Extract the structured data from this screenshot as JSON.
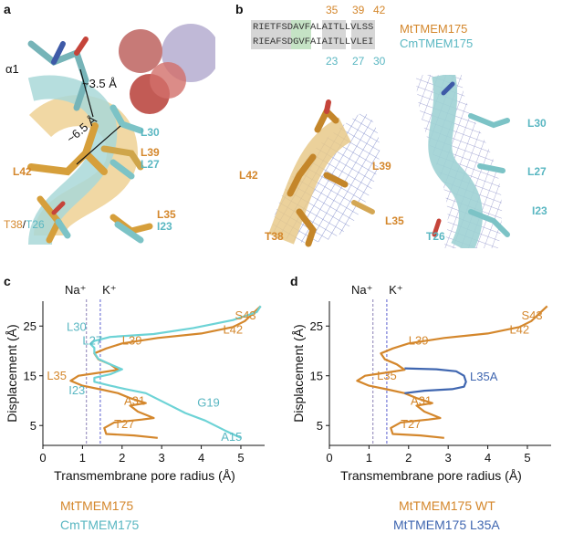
{
  "panels": {
    "a": {
      "label": "a",
      "helix": "α1",
      "dist1": "~3.5 Å",
      "dist2": "~6.5 Å",
      "residues_orange": [
        "L39",
        "L42",
        "L35"
      ],
      "residues_cyan": [
        "L30",
        "L27",
        "I23"
      ],
      "t38": "T38",
      "slash": "/",
      "t26": "T26"
    },
    "b": {
      "label": "b",
      "mt_numbers": [
        "35",
        "39",
        "42"
      ],
      "cm_numbers": [
        "23",
        "27",
        "30"
      ],
      "mt_name": "MtTMEM175",
      "cm_name": "CmTMEM175",
      "mt_seq": "RIETFSDAVFALAITLLVLSS",
      "cm_seq": "RIEAFSDGVFAIAITLLVLEI",
      "left_residues": [
        "L42",
        "L39",
        "L35",
        "T38"
      ],
      "right_residues": [
        "L30",
        "L27",
        "I23",
        "T26"
      ]
    },
    "c": {
      "label": "c",
      "na": "Na⁺",
      "k": "K⁺",
      "legend": [
        "MtTMEM175",
        "CmTMEM175"
      ],
      "labels_orange": [
        "S43",
        "L42",
        "L39",
        "L35",
        "A31",
        "T27"
      ],
      "labels_cyan": [
        "L30",
        "L27",
        "I23",
        "G19",
        "A15"
      ]
    },
    "d": {
      "label": "d",
      "na": "Na⁺",
      "k": "K⁺",
      "legend": [
        "MtTMEM175 WT",
        "MtTMEM175 L35A"
      ],
      "labels_orange": [
        "S43",
        "L42",
        "L39",
        "L35",
        "A31",
        "T27"
      ],
      "labels_blue": [
        "L35A"
      ]
    }
  },
  "colors": {
    "orange": "#d4872c",
    "cyan": "#6dd3d6",
    "blue": "#3f66b0",
    "na_line": "#8a7fb5",
    "k_line": "#5a5fd0"
  },
  "chart_data": [
    {
      "type": "line",
      "panel": "c",
      "xlabel": "Transmembrane pore radius (Å)",
      "ylabel": "Displacement (Å)",
      "xlim": [
        0,
        5.6
      ],
      "ylim": [
        1,
        30
      ],
      "xticks": [
        0,
        1,
        2,
        3,
        4,
        5
      ],
      "yticks": [
        5,
        15,
        25
      ],
      "reference_lines": [
        {
          "name": "Na⁺",
          "x": 1.1
        },
        {
          "name": "K⁺",
          "x": 1.45
        }
      ],
      "series": [
        {
          "name": "MtTMEM175",
          "points": [
            [
              2.9,
              2.5
            ],
            [
              2.3,
              3.0
            ],
            [
              1.6,
              3.3
            ],
            [
              1.55,
              4.5
            ],
            [
              1.8,
              5.6
            ],
            [
              2.5,
              6.2
            ],
            [
              2.8,
              6.5
            ],
            [
              2.4,
              7.8
            ],
            [
              2.2,
              9.0
            ],
            [
              2.6,
              9.5
            ],
            [
              2.2,
              10.5
            ],
            [
              1.9,
              11.5
            ],
            [
              1.5,
              12.2
            ],
            [
              1.0,
              13.0
            ],
            [
              0.7,
              14.0
            ],
            [
              0.9,
              15.0
            ],
            [
              1.4,
              15.6
            ],
            [
              1.9,
              16.2
            ],
            [
              1.7,
              17.3
            ],
            [
              1.4,
              18.3
            ],
            [
              1.3,
              19.5
            ],
            [
              1.6,
              20.5
            ],
            [
              2.0,
              21.5
            ],
            [
              2.9,
              22.6
            ],
            [
              4.0,
              23.5
            ],
            [
              4.8,
              24.8
            ],
            [
              5.1,
              26.0
            ],
            [
              5.3,
              27.5
            ],
            [
              5.5,
              29.0
            ]
          ]
        },
        {
          "name": "CmTMEM175",
          "points": [
            [
              5.0,
              2.5
            ],
            [
              4.6,
              4.0
            ],
            [
              4.1,
              6.0
            ],
            [
              3.6,
              7.5
            ],
            [
              3.1,
              9.5
            ],
            [
              2.6,
              11.5
            ],
            [
              2.1,
              12.3
            ],
            [
              1.7,
              13.0
            ],
            [
              1.3,
              13.8
            ],
            [
              1.3,
              14.6
            ],
            [
              1.7,
              15.3
            ],
            [
              2.0,
              16.3
            ],
            [
              1.7,
              17.3
            ],
            [
              1.4,
              18.4
            ],
            [
              1.3,
              19.6
            ],
            [
              1.3,
              20.6
            ],
            [
              1.2,
              21.4
            ],
            [
              1.3,
              22.0
            ],
            [
              1.7,
              22.8
            ],
            [
              2.8,
              23.4
            ],
            [
              3.8,
              24.6
            ],
            [
              4.8,
              26.2
            ],
            [
              5.4,
              27.8
            ],
            [
              5.5,
              29.0
            ]
          ]
        }
      ]
    },
    {
      "type": "line",
      "panel": "d",
      "xlabel": "Transmembrane pore radius (Å)",
      "ylabel": "Displacement (Å)",
      "xlim": [
        0,
        5.6
      ],
      "ylim": [
        1,
        30
      ],
      "xticks": [
        0,
        1,
        2,
        3,
        4,
        5
      ],
      "yticks": [
        5,
        15,
        25
      ],
      "reference_lines": [
        {
          "name": "Na⁺",
          "x": 1.1
        },
        {
          "name": "K⁺",
          "x": 1.45
        }
      ],
      "series": [
        {
          "name": "MtTMEM175 WT",
          "points": [
            [
              2.9,
              2.5
            ],
            [
              2.3,
              3.0
            ],
            [
              1.6,
              3.3
            ],
            [
              1.55,
              4.5
            ],
            [
              1.8,
              5.6
            ],
            [
              2.5,
              6.2
            ],
            [
              2.8,
              6.5
            ],
            [
              2.4,
              7.8
            ],
            [
              2.2,
              9.0
            ],
            [
              2.6,
              9.5
            ],
            [
              2.2,
              10.5
            ],
            [
              1.9,
              11.5
            ],
            [
              1.5,
              12.2
            ],
            [
              1.0,
              13.0
            ],
            [
              0.7,
              14.0
            ],
            [
              0.9,
              15.0
            ],
            [
              1.4,
              15.6
            ],
            [
              1.9,
              16.2
            ],
            [
              1.7,
              17.3
            ],
            [
              1.4,
              18.3
            ],
            [
              1.3,
              19.5
            ],
            [
              1.6,
              20.5
            ],
            [
              2.0,
              21.5
            ],
            [
              2.9,
              22.6
            ],
            [
              4.0,
              23.5
            ],
            [
              4.8,
              24.8
            ],
            [
              5.1,
              26.0
            ],
            [
              5.3,
              27.5
            ],
            [
              5.5,
              29.0
            ]
          ]
        },
        {
          "name": "MtTMEM175 L35A",
          "points": [
            [
              1.9,
              11.5
            ],
            [
              2.4,
              12.0
            ],
            [
              3.1,
              12.3
            ],
            [
              3.4,
              12.8
            ],
            [
              3.45,
              13.8
            ],
            [
              3.4,
              15.0
            ],
            [
              3.2,
              15.9
            ],
            [
              2.7,
              16.3
            ],
            [
              1.9,
              16.5
            ]
          ]
        }
      ]
    }
  ]
}
